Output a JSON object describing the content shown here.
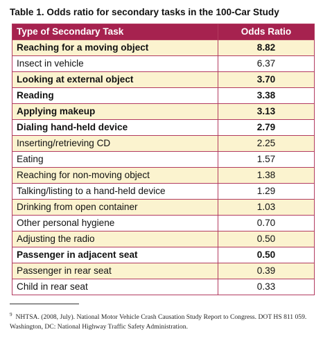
{
  "caption": "Table 1. Odds ratio for secondary tasks in the 100-Car Study",
  "table": {
    "headers": [
      "Type of Secondary Task",
      "Odds Ratio"
    ],
    "rows": [
      {
        "task": "Reaching for a moving object",
        "odds": "8.82",
        "bold": true
      },
      {
        "task": "Insect in vehicle",
        "odds": "6.37",
        "bold": false
      },
      {
        "task": "Looking at external object",
        "odds": "3.70",
        "bold": true
      },
      {
        "task": "Reading",
        "odds": "3.38",
        "bold": true
      },
      {
        "task": "Applying makeup",
        "odds": "3.13",
        "bold": true
      },
      {
        "task": "Dialing hand-held device",
        "odds": "2.79",
        "bold": true
      },
      {
        "task": "Inserting/retrieving CD",
        "odds": "2.25",
        "bold": false
      },
      {
        "task": "Eating",
        "odds": "1.57",
        "bold": false
      },
      {
        "task": "Reaching for non-moving object",
        "odds": "1.38",
        "bold": false
      },
      {
        "task": "Talking/listing to a hand-held device",
        "odds": "1.29",
        "bold": false
      },
      {
        "task": "Drinking from open container",
        "odds": "1.03",
        "bold": false
      },
      {
        "task": "Other personal hygiene",
        "odds": "0.70",
        "bold": false
      },
      {
        "task": "Adjusting the radio",
        "odds": "0.50",
        "bold": false
      },
      {
        "task": "Passenger in adjacent seat",
        "odds": "0.50",
        "bold": true
      },
      {
        "task": "Passenger in rear seat",
        "odds": "0.39",
        "bold": false
      },
      {
        "task": "Child in rear seat",
        "odds": "0.33",
        "bold": false
      }
    ]
  },
  "footnote": {
    "marker": "9",
    "text": "NHTSA. (2008, July). National Motor Vehicle Crash Causation Study Report to Congress. DOT HS 811 059. Washington, DC: National Highway Traffic Safety Administration."
  },
  "colors": {
    "header_background": "#a6224f",
    "header_text": "#ffffff",
    "odd_row_background": "#fbf3cf",
    "even_row_background": "#ffffff",
    "border": "#b23a5f"
  }
}
